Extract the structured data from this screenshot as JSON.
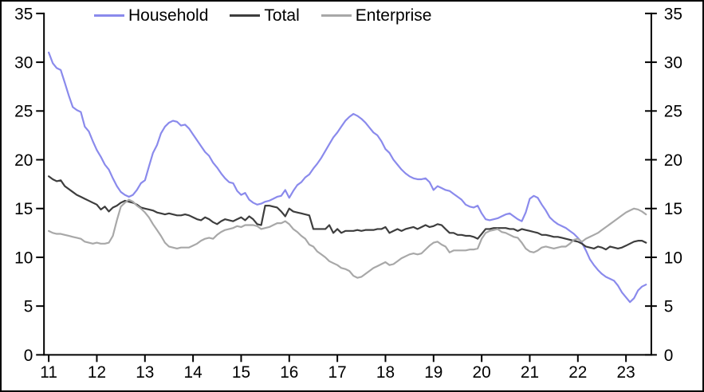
{
  "chart_data": {
    "type": "line",
    "title": "",
    "xlabel": "",
    "ylabel": "",
    "grid": false,
    "background": "#ffffff",
    "axis_color": "#000000",
    "legend_position": "top",
    "ylim": [
      0,
      35
    ],
    "y_ticks": [
      0,
      5,
      10,
      15,
      20,
      25,
      30,
      35
    ],
    "x_ticks": [
      11,
      12,
      13,
      14,
      15,
      16,
      17,
      18,
      19,
      20,
      21,
      22,
      23
    ],
    "x_start_year": 11,
    "x_step": 0.0833,
    "x_end_year": 23.42,
    "dual_axis": true,
    "series": [
      {
        "name": "Household",
        "color": "#8a8aec",
        "values": [
          31.0,
          29.9,
          29.4,
          29.2,
          27.9,
          26.6,
          25.4,
          25.1,
          24.9,
          23.4,
          22.9,
          21.9,
          21.0,
          20.3,
          19.5,
          19.0,
          18.1,
          17.3,
          16.7,
          16.4,
          16.2,
          16.4,
          16.9,
          17.6,
          17.9,
          19.3,
          20.7,
          21.5,
          22.7,
          23.4,
          23.8,
          24.0,
          23.9,
          23.5,
          23.6,
          23.2,
          22.6,
          22.0,
          21.4,
          20.8,
          20.4,
          19.7,
          19.2,
          18.6,
          18.1,
          17.7,
          17.6,
          16.8,
          16.4,
          16.6,
          15.9,
          15.6,
          15.4,
          15.5,
          15.7,
          15.8,
          16.0,
          16.2,
          16.3,
          16.9,
          16.1,
          16.8,
          17.4,
          17.7,
          18.2,
          18.5,
          19.1,
          19.6,
          20.2,
          20.9,
          21.6,
          22.3,
          22.8,
          23.4,
          24.0,
          24.4,
          24.7,
          24.5,
          24.2,
          23.8,
          23.3,
          22.8,
          22.5,
          21.9,
          21.1,
          20.7,
          20.0,
          19.5,
          19.0,
          18.6,
          18.3,
          18.1,
          18.0,
          18.0,
          18.1,
          17.7,
          16.9,
          17.3,
          17.1,
          16.9,
          16.8,
          16.5,
          16.2,
          15.9,
          15.4,
          15.2,
          15.1,
          15.3,
          14.5,
          13.9,
          13.8,
          13.9,
          14.0,
          14.2,
          14.4,
          14.5,
          14.2,
          13.9,
          13.7,
          14.6,
          16.0,
          16.3,
          16.1,
          15.4,
          14.8,
          14.1,
          13.7,
          13.4,
          13.2,
          13.0,
          12.7,
          12.4,
          12.0,
          11.5,
          10.7,
          9.8,
          9.2,
          8.7,
          8.3,
          8.0,
          7.8,
          7.6,
          7.1,
          6.4,
          5.9,
          5.4,
          5.8,
          6.6,
          7.0,
          7.2
        ]
      },
      {
        "name": "Total",
        "color": "#3d3d3d",
        "values": [
          18.3,
          18.0,
          17.8,
          17.9,
          17.3,
          17.0,
          16.7,
          16.4,
          16.2,
          16.0,
          15.8,
          15.6,
          15.4,
          14.9,
          15.2,
          14.7,
          15.1,
          15.3,
          15.6,
          15.8,
          15.7,
          15.6,
          15.4,
          15.1,
          15.0,
          14.9,
          14.8,
          14.6,
          14.5,
          14.4,
          14.5,
          14.4,
          14.3,
          14.3,
          14.4,
          14.3,
          14.1,
          13.9,
          13.8,
          14.1,
          13.9,
          13.6,
          13.4,
          13.7,
          13.9,
          13.8,
          13.7,
          13.9,
          14.1,
          13.8,
          14.2,
          13.9,
          13.4,
          13.3,
          15.3,
          15.3,
          15.2,
          15.1,
          14.7,
          14.2,
          15.0,
          14.7,
          14.6,
          14.5,
          14.4,
          14.3,
          12.9,
          12.9,
          12.9,
          12.9,
          13.3,
          12.5,
          12.9,
          12.5,
          12.7,
          12.7,
          12.7,
          12.8,
          12.7,
          12.8,
          12.8,
          12.8,
          12.9,
          12.9,
          13.1,
          12.5,
          12.7,
          12.9,
          12.7,
          12.9,
          13.0,
          13.1,
          12.9,
          13.1,
          13.3,
          13.1,
          13.2,
          13.4,
          13.3,
          12.9,
          12.5,
          12.5,
          12.3,
          12.3,
          12.2,
          12.2,
          12.1,
          11.9,
          12.4,
          12.9,
          12.9,
          13.0,
          13.0,
          13.0,
          13.0,
          12.9,
          12.9,
          12.7,
          12.9,
          12.8,
          12.7,
          12.6,
          12.5,
          12.3,
          12.3,
          12.2,
          12.1,
          12.1,
          12.0,
          11.9,
          11.8,
          11.7,
          11.6,
          11.4,
          11.1,
          11.0,
          10.9,
          11.1,
          11.0,
          10.8,
          11.1,
          11.0,
          10.9,
          11.0,
          11.2,
          11.4,
          11.6,
          11.7,
          11.7,
          11.5
        ]
      },
      {
        "name": "Enterprise",
        "color": "#a8a8a8",
        "values": [
          12.7,
          12.5,
          12.4,
          12.4,
          12.3,
          12.2,
          12.1,
          12.0,
          11.9,
          11.6,
          11.5,
          11.4,
          11.5,
          11.4,
          11.4,
          11.5,
          12.2,
          13.8,
          15.2,
          15.6,
          15.9,
          15.7,
          15.3,
          15.0,
          14.6,
          14.1,
          13.4,
          12.8,
          12.2,
          11.5,
          11.1,
          11.0,
          10.9,
          11.0,
          11.0,
          11.0,
          11.2,
          11.4,
          11.7,
          11.9,
          12.0,
          11.9,
          12.3,
          12.6,
          12.8,
          12.9,
          13.0,
          13.2,
          13.1,
          13.3,
          13.3,
          13.3,
          13.2,
          12.9,
          13.0,
          13.1,
          13.3,
          13.5,
          13.5,
          13.7,
          13.4,
          12.9,
          12.6,
          12.2,
          11.9,
          11.3,
          11.1,
          10.6,
          10.3,
          10.0,
          9.6,
          9.4,
          9.2,
          8.9,
          8.8,
          8.6,
          8.1,
          7.9,
          8.0,
          8.3,
          8.6,
          8.9,
          9.1,
          9.3,
          9.5,
          9.2,
          9.3,
          9.6,
          9.9,
          10.1,
          10.3,
          10.4,
          10.3,
          10.4,
          10.8,
          11.2,
          11.5,
          11.6,
          11.3,
          11.1,
          10.5,
          10.7,
          10.7,
          10.7,
          10.7,
          10.8,
          10.8,
          10.9,
          11.9,
          12.5,
          12.7,
          12.8,
          12.9,
          12.6,
          12.5,
          12.3,
          12.1,
          12.0,
          11.5,
          10.9,
          10.6,
          10.5,
          10.7,
          11.0,
          11.1,
          11.0,
          10.9,
          11.0,
          11.1,
          11.1,
          11.4,
          11.8,
          11.9,
          11.6,
          11.9,
          12.1,
          12.3,
          12.5,
          12.8,
          13.1,
          13.4,
          13.7,
          14.0,
          14.3,
          14.6,
          14.8,
          15.0,
          14.9,
          14.7,
          14.4
        ]
      }
    ]
  }
}
